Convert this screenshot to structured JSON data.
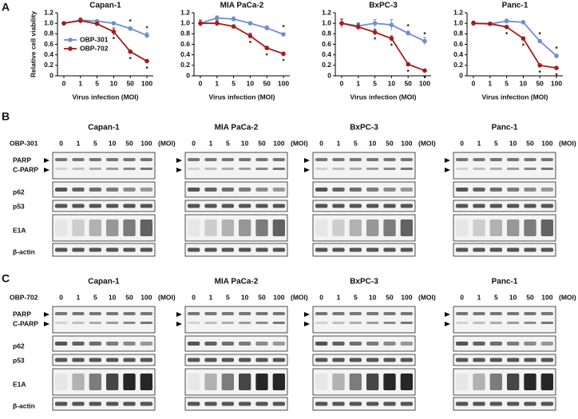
{
  "chart_data": [
    {
      "type": "line",
      "title": "Capan-1",
      "xlabel": "Virus infection (MOI)",
      "ylabel": "Relative cell viability",
      "categories": [
        "0",
        "1",
        "5",
        "10",
        "50",
        "100"
      ],
      "ylim": [
        0,
        1.2
      ],
      "yticks": [
        0,
        0.2,
        0.4,
        0.6,
        0.8,
        {
          "value": 1,
          "label": "1.0"
        },
        1.2
      ],
      "legend": "center-left",
      "series": [
        {
          "name": "OBP-301",
          "color": "#6f8fd0",
          "values": [
            1.0,
            1.06,
            1.04,
            1.0,
            0.9,
            0.77
          ],
          "errors": [
            0.02,
            0.03,
            0.02,
            0.02,
            0.03,
            0.05
          ],
          "stars": [
            null,
            null,
            null,
            null,
            "*",
            "*"
          ]
        },
        {
          "name": "OBP-702",
          "color": "#a51c1c",
          "values": [
            1.0,
            1.05,
            0.99,
            0.84,
            0.46,
            0.28
          ],
          "errors": [
            0.02,
            0.05,
            0.03,
            0.07,
            0.02,
            0.02
          ],
          "stars": [
            null,
            null,
            null,
            "*",
            "*",
            "*"
          ]
        }
      ]
    },
    {
      "type": "line",
      "title": "MIA PaCa-2",
      "xlabel": "Virus infection (MOI)",
      "categories": [
        "0",
        "1",
        "5",
        "10",
        "50",
        "100"
      ],
      "ylim": [
        0,
        1.2
      ],
      "yticks": [
        0,
        0.2,
        0.4,
        0.6,
        0.8,
        {
          "value": 1,
          "label": "1.0"
        },
        1.2
      ],
      "series": [
        {
          "color": "#6f8fd0",
          "values": [
            1.0,
            1.1,
            1.08,
            1.0,
            0.91,
            0.79
          ],
          "errors": [
            0.06,
            0.04,
            0.04,
            0.03,
            0.04,
            0.03
          ],
          "stars": [
            null,
            null,
            null,
            null,
            null,
            "*"
          ]
        },
        {
          "color": "#a51c1c",
          "values": [
            1.0,
            1.0,
            0.94,
            0.76,
            0.53,
            0.42
          ],
          "errors": [
            0.06,
            0.05,
            0.03,
            0.05,
            0.03,
            0.02
          ],
          "stars": [
            null,
            null,
            null,
            "*",
            "*",
            "*"
          ]
        }
      ]
    },
    {
      "type": "line",
      "title": "BxPC-3",
      "xlabel": "Virus infection (MOI)",
      "categories": [
        "0",
        "1",
        "5",
        "10",
        "50",
        "100"
      ],
      "ylim": [
        0,
        1.2
      ],
      "yticks": [
        0,
        0.2,
        0.4,
        0.6,
        0.8,
        {
          "value": 1,
          "label": "1.0"
        },
        1.2
      ],
      "series": [
        {
          "color": "#6f8fd0",
          "values": [
            1.0,
            0.95,
            1.0,
            0.97,
            0.81,
            0.66
          ],
          "errors": [
            0.08,
            0.06,
            0.07,
            0.1,
            0.04,
            0.07
          ],
          "stars": [
            null,
            null,
            null,
            null,
            "*",
            "*"
          ]
        },
        {
          "color": "#a51c1c",
          "values": [
            1.0,
            0.93,
            0.83,
            0.71,
            0.22,
            0.1
          ],
          "errors": [
            0.08,
            0.06,
            0.06,
            0.05,
            0.02,
            0.02
          ],
          "stars": [
            null,
            null,
            "*",
            "*",
            "*",
            "*"
          ]
        }
      ]
    },
    {
      "type": "line",
      "title": "Panc-1",
      "xlabel": "Virus infection (MOI)",
      "categories": [
        "0",
        "1",
        "5",
        "10",
        "50",
        "100"
      ],
      "ylim": [
        0,
        1.2
      ],
      "yticks": [
        0,
        0.2,
        0.4,
        0.6,
        0.8,
        {
          "value": 1,
          "label": "1.0"
        },
        1.2
      ],
      "series": [
        {
          "color": "#6f8fd0",
          "values": [
            1.0,
            0.99,
            1.04,
            1.02,
            0.66,
            0.38
          ],
          "errors": [
            0.04,
            0.02,
            0.04,
            0.02,
            0.02,
            0.02
          ],
          "stars": [
            null,
            null,
            null,
            null,
            "*",
            "*"
          ]
        },
        {
          "color": "#a51c1c",
          "values": [
            1.0,
            0.99,
            0.93,
            0.71,
            0.2,
            0.15
          ],
          "errors": [
            0.04,
            0.02,
            0.02,
            0.03,
            0.02,
            0.02
          ],
          "stars": [
            null,
            null,
            "*",
            "*",
            "*",
            "*"
          ]
        }
      ]
    }
  ],
  "panel_labels": [
    "A",
    "B",
    "C"
  ],
  "blots": [
    {
      "treatment": "OBP-301",
      "doses": [
        "0",
        "1",
        "5",
        "10",
        "50",
        "100"
      ],
      "unit": "(MOI)",
      "cell_lines": [
        "Capan-1",
        "MIA PaCa-2",
        "BxPC-3",
        "Panc-1"
      ],
      "rows": [
        "PARP",
        "C-PARP",
        "p62",
        "p53",
        "E1A",
        "β-actin"
      ]
    },
    {
      "treatment": "OBP-702",
      "doses": [
        "0",
        "1",
        "5",
        "10",
        "50",
        "100"
      ],
      "unit": "(MOI)",
      "cell_lines": [
        "Capan-1",
        "MIA PaCa-2",
        "BxPC-3",
        "Panc-1"
      ],
      "rows": [
        "PARP",
        "C-PARP",
        "p62",
        "p53",
        "E1A",
        "β-actin"
      ]
    }
  ]
}
